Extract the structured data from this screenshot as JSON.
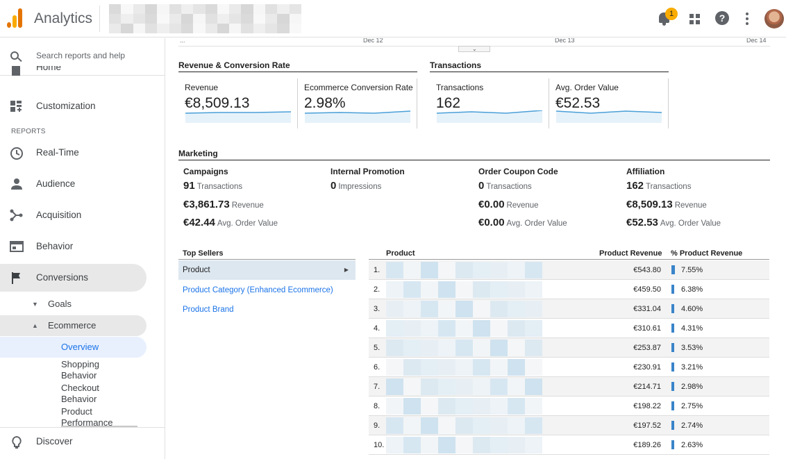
{
  "app": {
    "title": "Analytics",
    "notification_count": "1"
  },
  "search": {
    "placeholder": "Search reports and help"
  },
  "sidebar": {
    "home_label": "Home",
    "customization_label": "Customization",
    "reports_header": "REPORTS",
    "items": [
      {
        "label": "Real-Time",
        "icon": "clock-icon"
      },
      {
        "label": "Audience",
        "icon": "person-icon"
      },
      {
        "label": "Acquisition",
        "icon": "acquisition-icon"
      },
      {
        "label": "Behavior",
        "icon": "behavior-icon"
      },
      {
        "label": "Conversions",
        "icon": "flag-icon"
      }
    ],
    "goals_label": "Goals",
    "ecommerce_label": "Ecommerce",
    "overview_label": "Overview",
    "shopping_behavior": "Shopping Behavior",
    "checkout_behavior": "Checkout Behavior",
    "product_performance": "Product Performance",
    "discover_label": "Discover"
  },
  "timeline": {
    "start": "...",
    "dates": [
      "Dec 12",
      "Dec 13",
      "Dec 14"
    ],
    "toggle": "⌄"
  },
  "revenue_section": {
    "title": "Revenue & Conversion Rate",
    "metrics": [
      {
        "label": "Revenue",
        "value": "€8,509.13"
      },
      {
        "label": "Ecommerce Conversion Rate",
        "value": "2.98%"
      }
    ]
  },
  "transactions_section": {
    "title": "Transactions",
    "metrics": [
      {
        "label": "Transactions",
        "value": "162"
      },
      {
        "label": "Avg. Order Value",
        "value": "€52.53"
      }
    ]
  },
  "marketing": {
    "title": "Marketing",
    "columns": [
      {
        "title": "Campaigns",
        "rows": [
          {
            "value": "91",
            "label": "Transactions"
          },
          {
            "value": "€3,861.73",
            "label": "Revenue"
          },
          {
            "value": "€42.44",
            "label": "Avg. Order Value"
          }
        ]
      },
      {
        "title": "Internal Promotion",
        "rows": [
          {
            "value": "0",
            "label": "Impressions"
          }
        ]
      },
      {
        "title": "Order Coupon Code",
        "rows": [
          {
            "value": "0",
            "label": "Transactions"
          },
          {
            "value": "€0.00",
            "label": "Revenue"
          },
          {
            "value": "€0.00",
            "label": "Avg. Order Value"
          }
        ]
      },
      {
        "title": "Affiliation",
        "rows": [
          {
            "value": "162",
            "label": "Transactions"
          },
          {
            "value": "€8,509.13",
            "label": "Revenue"
          },
          {
            "value": "€52.53",
            "label": "Avg. Order Value"
          }
        ]
      }
    ]
  },
  "top_sellers": {
    "title": "Top Sellers",
    "items": [
      "Product",
      "Product Category (Enhanced Ecommerce)",
      "Product Brand"
    ]
  },
  "product_table": {
    "headers": {
      "product": "Product",
      "revenue": "Product Revenue",
      "pct": "% Product Revenue"
    },
    "rows": [
      {
        "idx": "1.",
        "revenue": "€543.80",
        "pct": "7.55%",
        "share": 0.0755
      },
      {
        "idx": "2.",
        "revenue": "€459.50",
        "pct": "6.38%",
        "share": 0.0638
      },
      {
        "idx": "3.",
        "revenue": "€331.04",
        "pct": "4.60%",
        "share": 0.046
      },
      {
        "idx": "4.",
        "revenue": "€310.61",
        "pct": "4.31%",
        "share": 0.0431
      },
      {
        "idx": "5.",
        "revenue": "€253.87",
        "pct": "3.53%",
        "share": 0.0353
      },
      {
        "idx": "6.",
        "revenue": "€230.91",
        "pct": "3.21%",
        "share": 0.0321
      },
      {
        "idx": "7.",
        "revenue": "€214.71",
        "pct": "2.98%",
        "share": 0.0298
      },
      {
        "idx": "8.",
        "revenue": "€198.22",
        "pct": "2.75%",
        "share": 0.0275
      },
      {
        "idx": "9.",
        "revenue": "€197.52",
        "pct": "2.74%",
        "share": 0.0274
      },
      {
        "idx": "10.",
        "revenue": "€189.26",
        "pct": "2.63%",
        "share": 0.0263
      }
    ]
  },
  "colors": {
    "accent": "#1a73e8",
    "bar": "#3a84c9",
    "sparkline": "#4a9fd8",
    "sparkfill": "#e6f2fa",
    "logo_orange": "#e37400",
    "logo_yellow": "#f9ab00"
  }
}
